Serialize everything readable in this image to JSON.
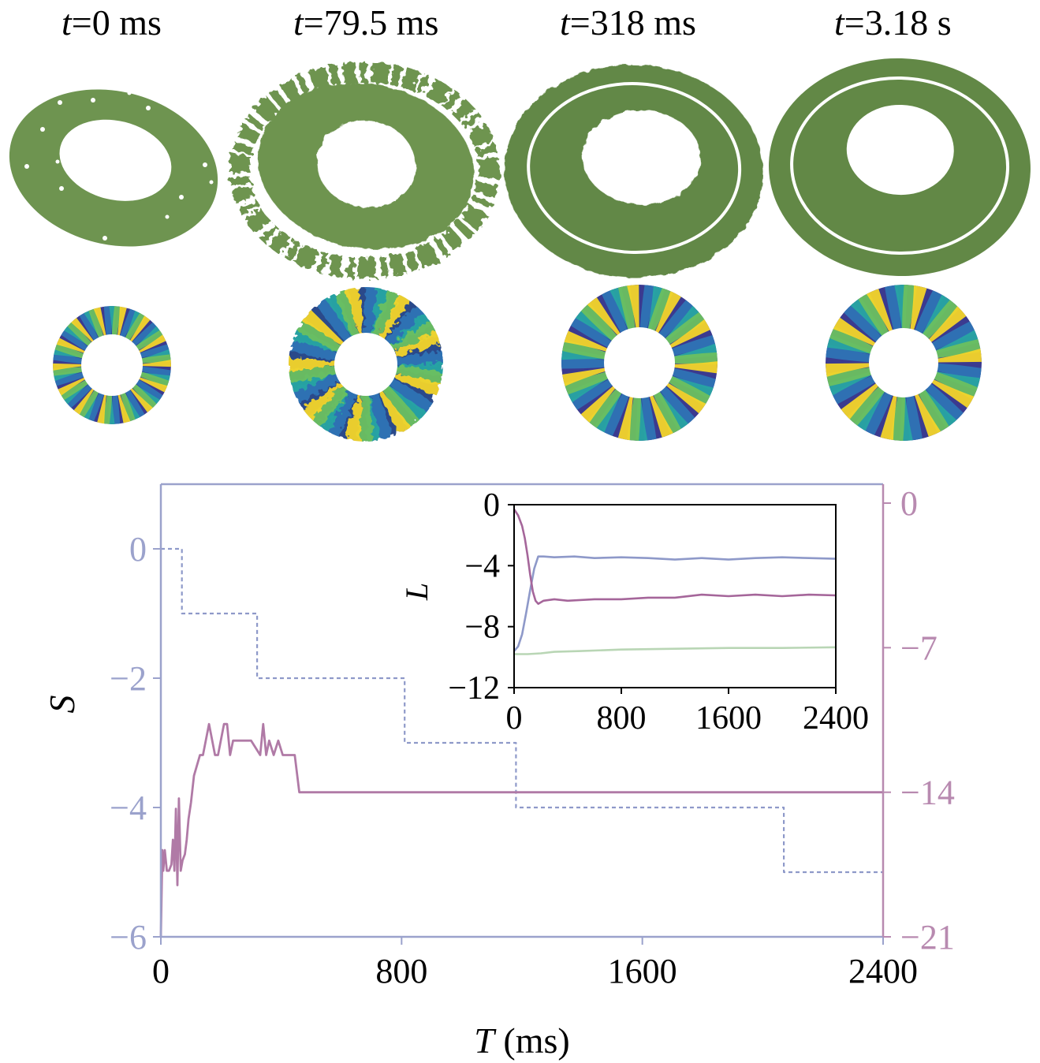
{
  "snapshots": [
    {
      "t_var": "t",
      "t_value": "=0 ms"
    },
    {
      "t_var": "t",
      "t_value": "=79.5 ms"
    },
    {
      "t_var": "t",
      "t_value": "=318 ms"
    },
    {
      "t_var": "t",
      "t_value": "=3.18 s"
    }
  ],
  "colors": {
    "annulus_green": "#6e9450",
    "annulus_green_dark": "#628846",
    "phase_dark": "#3b3a8f",
    "phase_blue": "#2e73b5",
    "phase_teal": "#27a5a3",
    "phase_green": "#6cc060",
    "phase_yellow": "#f3d42a",
    "left_axis": "#9ba2cc",
    "right_axis": "#b88ab0",
    "inset_blue": "#8e99c9",
    "inset_purple": "#a5669a",
    "inset_green": "#b9d6b5"
  },
  "chart_data": [
    {
      "type": "line",
      "xlabel_var": "T",
      "xlabel_unit": " (ms)",
      "ylabel_left": "S",
      "ylabel_right": "",
      "xlim": [
        0,
        2400
      ],
      "ylim_left": [
        -6,
        1
      ],
      "ylim_right": [
        -21,
        0
      ],
      "x_ticks": [
        "0",
        "800",
        "1600",
        "2400"
      ],
      "y_left_ticks": [
        {
          "value": 0,
          "label": "0"
        },
        {
          "value": -2,
          "label": "−2"
        },
        {
          "value": -4,
          "label": "−4"
        },
        {
          "value": -6,
          "label": "−6"
        }
      ],
      "y_right_ticks": [
        {
          "value": 0,
          "label": "0"
        },
        {
          "value": -7,
          "label": "−7"
        },
        {
          "value": -14,
          "label": "−14"
        },
        {
          "value": -21,
          "label": "−21"
        }
      ],
      "series": [
        {
          "axis": "left",
          "style": "dashed-step",
          "color": "#8e99c9",
          "x": [
            0,
            70,
            70,
            320,
            320,
            810,
            810,
            1180,
            1180,
            2070,
            2070,
            2400
          ],
          "y": [
            0,
            0,
            -1,
            -1,
            -2,
            -2,
            -3,
            -3,
            -4,
            -4,
            -5,
            -5
          ]
        },
        {
          "axis": "right",
          "style": "solid",
          "color": "#b07aa6",
          "x": [
            0,
            5,
            8,
            13,
            20,
            27,
            35,
            40,
            45,
            50,
            55,
            60,
            66,
            72,
            80,
            86,
            92,
            100,
            110,
            130,
            140,
            160,
            180,
            190,
            210,
            220,
            230,
            240,
            250,
            260,
            270,
            300,
            330,
            340,
            350,
            360,
            375,
            390,
            405,
            420,
            430,
            445,
            460,
            480,
            2400
          ],
          "y": [
            -21,
            -16.8,
            -17.8,
            -16.8,
            -17.8,
            -17.8,
            -17.5,
            -16.3,
            -17.8,
            -14.8,
            -18.5,
            -14.3,
            -17.8,
            -17.3,
            -17,
            -16.3,
            -15.3,
            -14.5,
            -13.2,
            -12.2,
            -12.2,
            -10.7,
            -12.2,
            -12.2,
            -10.7,
            -10.7,
            -12.2,
            -11.5,
            -11.5,
            -11.5,
            -11.5,
            -11.5,
            -12.2,
            -10.7,
            -12.2,
            -11.5,
            -12.2,
            -11.5,
            -12.2,
            -12.2,
            -12.2,
            -12.2,
            -14,
            -14,
            -14
          ]
        }
      ]
    },
    {
      "type": "line",
      "ylabel": "L",
      "xlim": [
        0,
        2400
      ],
      "ylim": [
        -12,
        0
      ],
      "x_ticks": [
        "0",
        "800",
        "1600",
        "2400"
      ],
      "y_ticks": [
        {
          "value": 0,
          "label": "0"
        },
        {
          "value": -4,
          "label": "−4"
        },
        {
          "value": -8,
          "label": "−8"
        },
        {
          "value": -12,
          "label": "−12"
        }
      ],
      "series": [
        {
          "color": "#8e99c9",
          "x": [
            0,
            30,
            60,
            90,
            120,
            150,
            180,
            220,
            300,
            450,
            600,
            800,
            1000,
            1200,
            1400,
            1600,
            1800,
            2000,
            2200,
            2400
          ],
          "y": [
            -9.6,
            -9.3,
            -8.5,
            -7.1,
            -5.6,
            -4.2,
            -3.4,
            -3.4,
            -3.45,
            -3.4,
            -3.5,
            -3.45,
            -3.5,
            -3.6,
            -3.5,
            -3.6,
            -3.5,
            -3.45,
            -3.5,
            -3.55
          ]
        },
        {
          "color": "#a5669a",
          "x": [
            0,
            30,
            60,
            80,
            100,
            120,
            140,
            160,
            180,
            220,
            300,
            400,
            600,
            800,
            1000,
            1200,
            1400,
            1600,
            1800,
            2000,
            2200,
            2400
          ],
          "y": [
            -0.3,
            -0.7,
            -1.4,
            -2.2,
            -3.3,
            -4.6,
            -5.7,
            -6.3,
            -6.5,
            -6.3,
            -6.2,
            -6.3,
            -6.2,
            -6.2,
            -6.1,
            -6.1,
            -5.9,
            -6.0,
            -5.9,
            -6.0,
            -5.9,
            -5.95
          ]
        },
        {
          "color": "#b9d6b5",
          "x": [
            0,
            100,
            200,
            300,
            500,
            800,
            1200,
            1600,
            2000,
            2400
          ],
          "y": [
            -9.8,
            -9.8,
            -9.75,
            -9.65,
            -9.6,
            -9.5,
            -9.45,
            -9.4,
            -9.4,
            -9.35
          ]
        }
      ]
    }
  ]
}
